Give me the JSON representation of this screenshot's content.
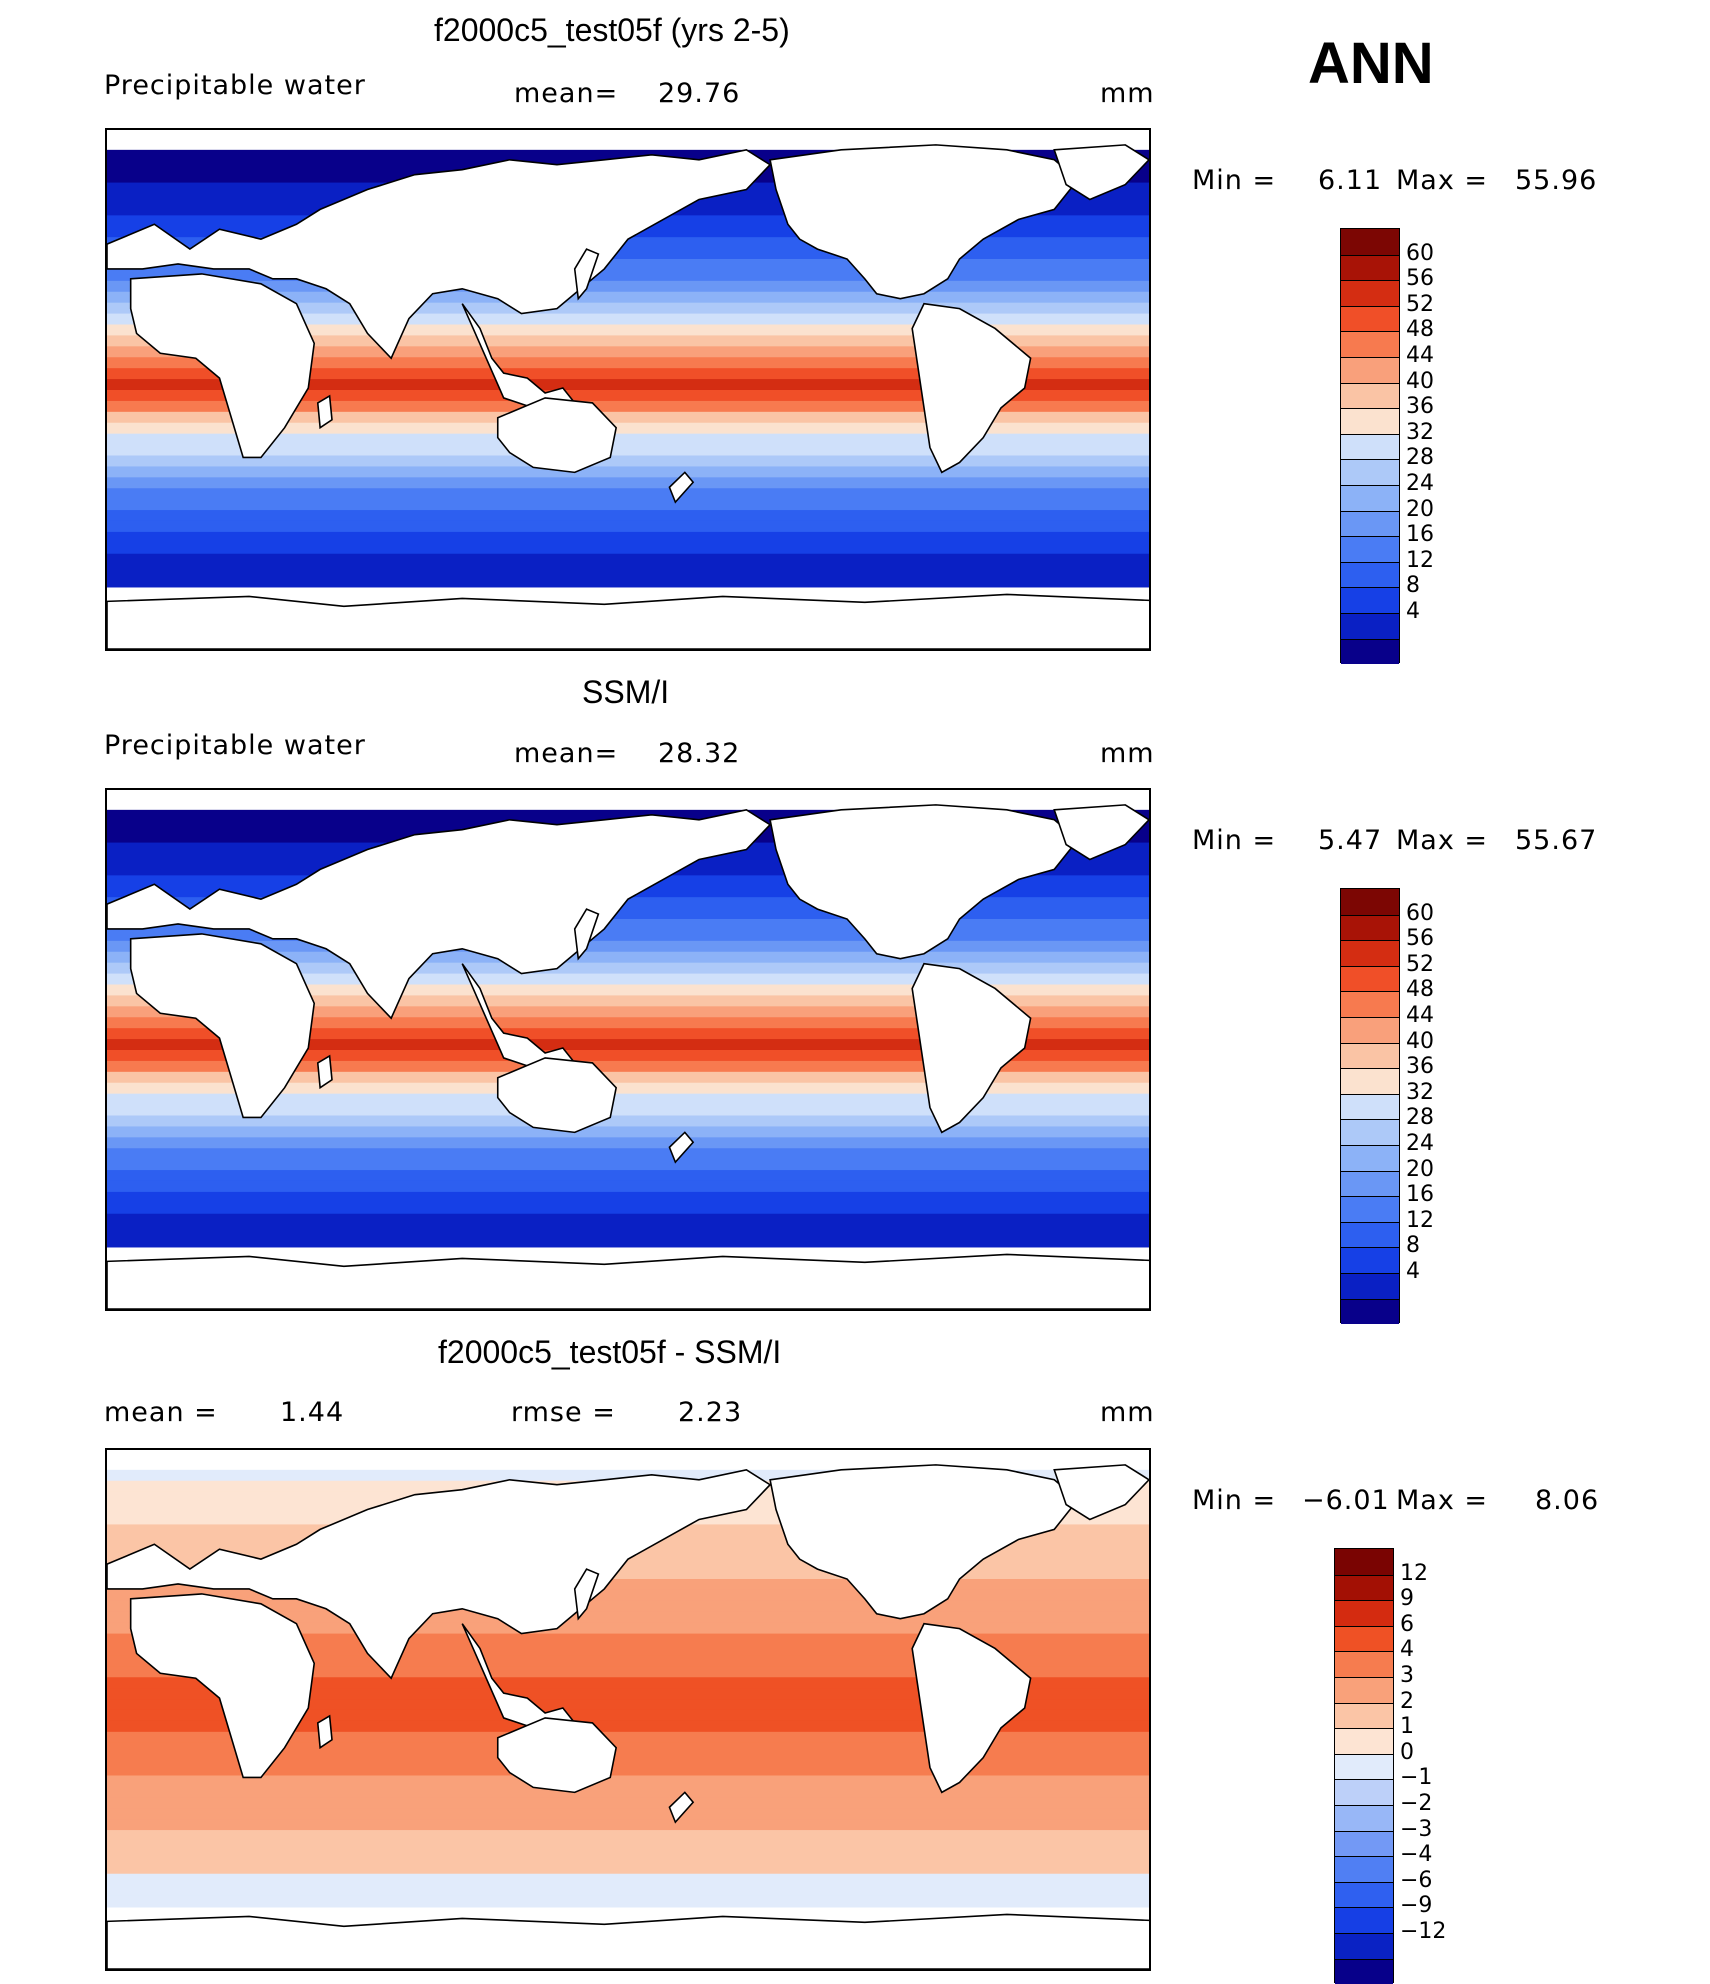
{
  "season": "ANN",
  "colors": {
    "abs_scale": [
      "#08008a",
      "#0a20c4",
      "#1640e6",
      "#2d5ff0",
      "#4a7cf4",
      "#6a97f5",
      "#8cb2f7",
      "#adc9f8",
      "#cfe0fa",
      "#fbe2cf",
      "#fac4a5",
      "#f9a07b",
      "#f77a4f",
      "#f04f28",
      "#d42d12",
      "#a81306",
      "#7c0603"
    ],
    "diff_scale": [
      "#07008a",
      "#0a22c4",
      "#163fe5",
      "#2f60f0",
      "#507ff3",
      "#7399f5",
      "#98b7f7",
      "#bdd0f9",
      "#e1ebfb",
      "#fde4d3",
      "#fbc5a6",
      "#f9a17a",
      "#f67c4f",
      "#ef5125",
      "#d42b10",
      "#a31004",
      "#7a0402"
    ],
    "land": "#ffffff",
    "coast": "#000000"
  },
  "chart_data": [
    {
      "type": "heatmap",
      "title": "f2000c5_test05f (yrs 2-5)",
      "variable": "Precipitable water",
      "mean_label": "mean=",
      "mean_value": "29.76",
      "units": "mm",
      "min_label": "Min =",
      "min_value": "6.11",
      "max_label": "Max =",
      "max_value": "55.96",
      "levels": [
        "60",
        "56",
        "52",
        "48",
        "44",
        "40",
        "36",
        "32",
        "28",
        "24",
        "20",
        "16",
        "12",
        "8",
        "4"
      ],
      "scale": "abs_scale"
    },
    {
      "type": "heatmap",
      "title": "SSM/I",
      "variable": "Precipitable water",
      "mean_label": "mean=",
      "mean_value": "28.32",
      "units": "mm",
      "min_label": "Min =",
      "min_value": "5.47",
      "max_label": "Max =",
      "max_value": "55.67",
      "levels": [
        "60",
        "56",
        "52",
        "48",
        "44",
        "40",
        "36",
        "32",
        "28",
        "24",
        "20",
        "16",
        "12",
        "8",
        "4"
      ],
      "scale": "abs_scale"
    },
    {
      "type": "heatmap",
      "title": "f2000c5_test05f - SSM/I",
      "mean_label": "mean =",
      "mean_value": "1.44",
      "rmse_label": "rmse =",
      "rmse_value": "2.23",
      "units": "mm",
      "min_label": "Min =",
      "min_value": "−6.01",
      "max_label": "Max =",
      "max_value": "8.06",
      "levels": [
        "12",
        "9",
        "6",
        "4",
        "3",
        "2",
        "1",
        "0",
        "−1",
        "−2",
        "−3",
        "−4",
        "−6",
        "−9",
        "−12"
      ],
      "scale": "diff_scale"
    }
  ]
}
